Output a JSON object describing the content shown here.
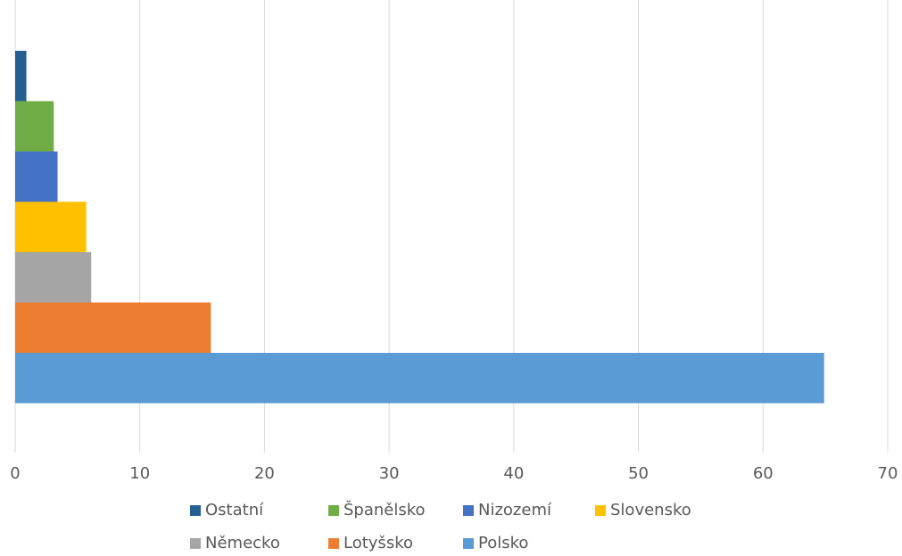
{
  "chart_data": {
    "type": "bar",
    "orientation": "horizontal",
    "series": [
      {
        "name": "Ostatní",
        "color": "#255e91",
        "values": [
          0.9
        ]
      },
      {
        "name": "Španělsko",
        "color": "#70ad47",
        "values": [
          3.1
        ]
      },
      {
        "name": "Nizozemí",
        "color": "#4472c4",
        "values": [
          3.4
        ]
      },
      {
        "name": "Slovensko",
        "color": "#ffc000",
        "values": [
          5.7
        ]
      },
      {
        "name": "Německo",
        "color": "#a5a5a5",
        "values": [
          6.1
        ]
      },
      {
        "name": "Lotyšsko",
        "color": "#ed7d31",
        "values": [
          15.7
        ]
      },
      {
        "name": "Polsko",
        "color": "#5b9bd5",
        "values": [
          64.9
        ]
      }
    ],
    "xlim": [
      0,
      70
    ],
    "xticks": [
      0,
      10,
      20,
      30,
      40,
      50,
      60,
      70
    ],
    "grid": true,
    "legend": "bottom"
  }
}
